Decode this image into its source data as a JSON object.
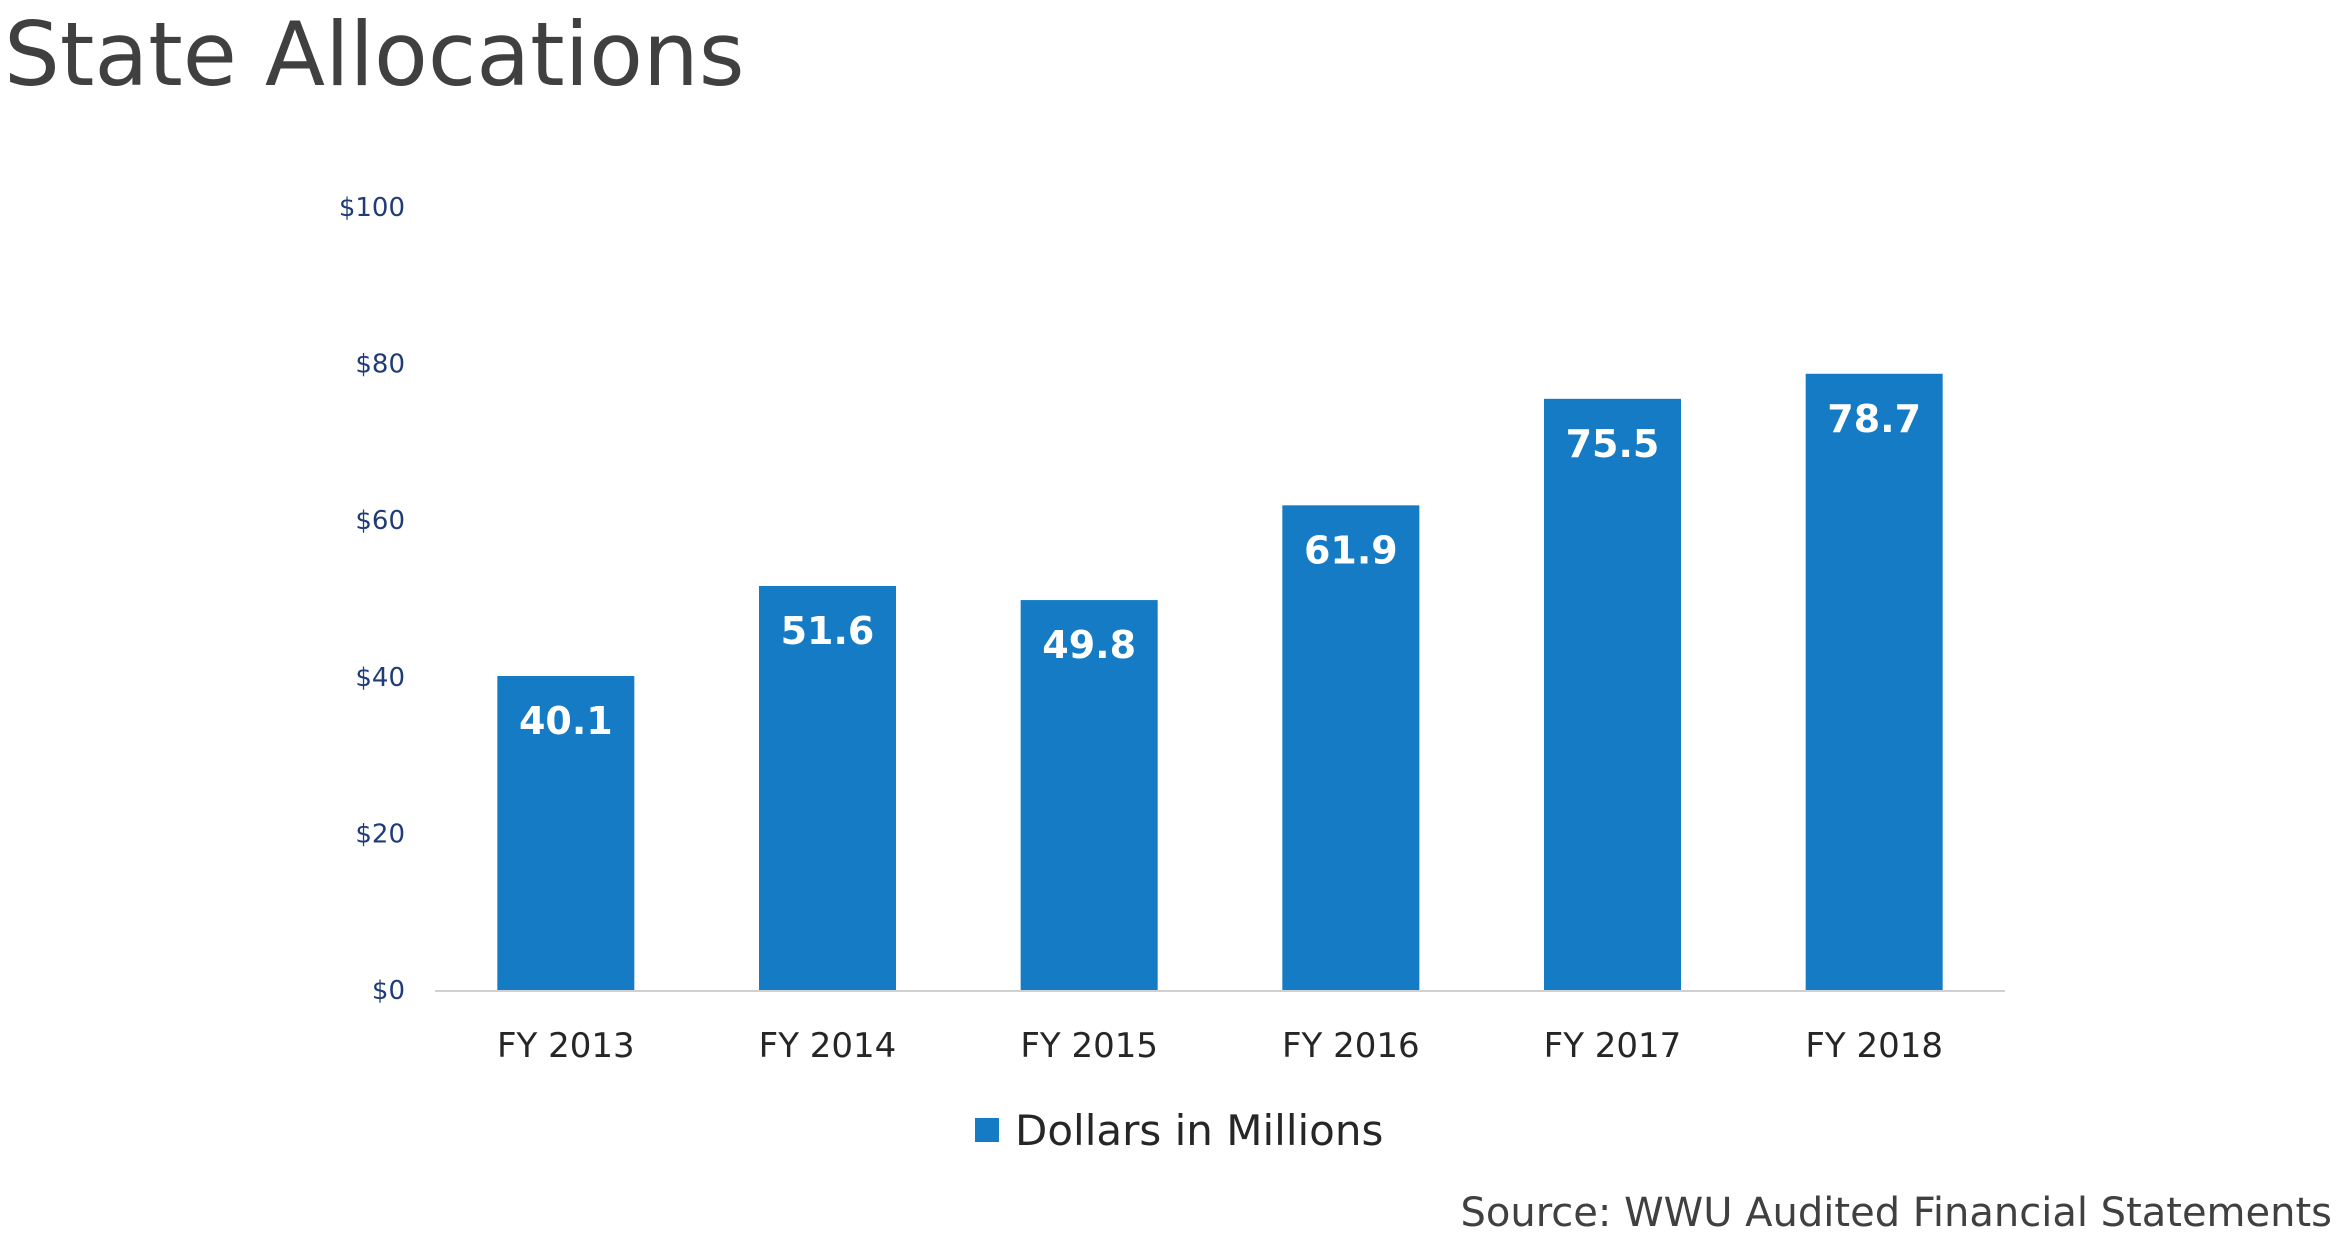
{
  "title": "State Allocations",
  "source": "Source:  WWU Audited Financial Statements",
  "colors": {
    "bar": "#157bc4",
    "axis": "#d0d0d0",
    "tick_label": "#1f3c78"
  },
  "chart_data": {
    "type": "bar",
    "categories": [
      "FY 2013",
      "FY 2014",
      "FY 2015",
      "FY 2016",
      "FY 2017",
      "FY 2018"
    ],
    "series": [
      {
        "name": "Dollars in Millions",
        "values": [
          40.1,
          51.6,
          49.8,
          61.9,
          75.5,
          78.7
        ],
        "data_labels": [
          "40.1",
          "51.6",
          "49.8",
          "61.9",
          "75.5",
          "78.7"
        ]
      }
    ],
    "y_ticks": [
      0,
      20,
      40,
      60,
      80,
      100
    ],
    "y_tick_labels": [
      "$0",
      "$20",
      "$40",
      "$60",
      "$80",
      "$100"
    ],
    "ylim": [
      0,
      100
    ],
    "grid": false,
    "legend": "bottom"
  }
}
